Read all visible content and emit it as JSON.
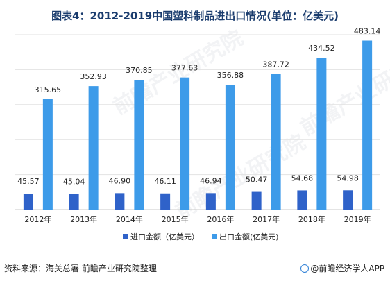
{
  "title": "图表4：2012-2019中国塑料制品进出口情况(单位：亿美元)",
  "source": "资料来源：海关总署 前瞻产业研究院整理",
  "brand": "@前瞻经济学人APP",
  "watermark": "前瞻产业研究院",
  "colors": {
    "import": "#2f62c9",
    "export": "#3d9be9",
    "grid": "#e2e2e2",
    "axis": "#c8c8c8",
    "title": "#1a3c6e"
  },
  "chart_data": {
    "type": "bar",
    "categories": [
      "2012年",
      "2013年",
      "2014年",
      "2015年",
      "2016年",
      "2017年",
      "2018年",
      "2019年"
    ],
    "series": [
      {
        "name": "进口金额（亿美元）",
        "values": [
          45.57,
          45.04,
          46.9,
          46.11,
          46.94,
          50.47,
          54.68,
          54.98
        ]
      },
      {
        "name": "出口金额(亿美元)",
        "values": [
          315.65,
          352.93,
          370.85,
          377.63,
          356.88,
          387.72,
          434.52,
          483.14
        ]
      }
    ],
    "value_labels": [
      [
        "45.57",
        "45.04",
        "46.90",
        "46.11",
        "46.94",
        "50.47",
        "54.68",
        "54.98"
      ],
      [
        "315.65",
        "352.93",
        "370.85",
        "377.63",
        "356.88",
        "387.72",
        "434.52",
        "483.14"
      ]
    ],
    "ylim": [
      0,
      500
    ],
    "grid": true,
    "legend": "bottom"
  }
}
